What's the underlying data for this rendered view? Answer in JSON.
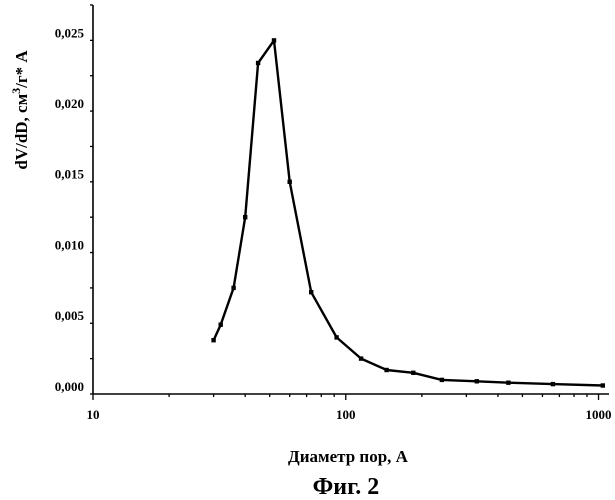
{
  "chart_data": {
    "type": "line",
    "xlabel": "Диаметр пор, А",
    "ylabel_main": "dV/dD, см",
    "ylabel_sup": "3",
    "ylabel_tail": "/г* А",
    "caption": "Фиг. 2",
    "x_scale": "log",
    "xlim": [
      10,
      1100
    ],
    "ylim": [
      -0.0005,
      0.027
    ],
    "x_ticks": [
      {
        "value": 10,
        "label": "10"
      },
      {
        "value": 100,
        "label": "100"
      },
      {
        "value": 1000,
        "label": "1000"
      }
    ],
    "y_ticks": [
      {
        "value": 0.0,
        "label": "0,000"
      },
      {
        "value": 0.005,
        "label": "0,005"
      },
      {
        "value": 0.01,
        "label": "0,010"
      },
      {
        "value": 0.015,
        "label": "0,015"
      },
      {
        "value": 0.02,
        "label": "0,020"
      },
      {
        "value": 0.025,
        "label": "0,025"
      }
    ],
    "grid": false,
    "series": [
      {
        "x": [
          30,
          32,
          36,
          40,
          45,
          52,
          60,
          73,
          92,
          115,
          145,
          185,
          240,
          330,
          440,
          660,
          1040
        ],
        "y": [
          0.0033,
          0.0044,
          0.007,
          0.012,
          0.0229,
          0.0245,
          0.0145,
          0.0067,
          0.0035,
          0.002,
          0.0012,
          0.001,
          0.0005,
          0.0004,
          0.0003,
          0.0002,
          0.0001
        ]
      }
    ],
    "line_color": "#000000"
  }
}
